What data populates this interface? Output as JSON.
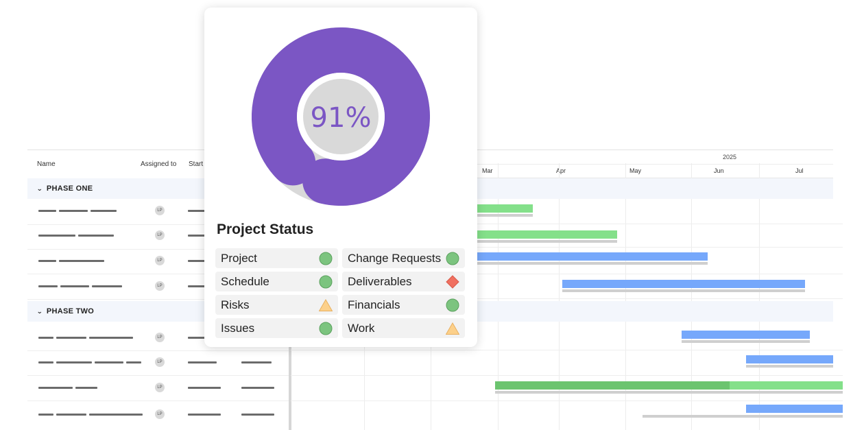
{
  "grid": {
    "columns": [
      {
        "label": "Name"
      },
      {
        "label": "Assigned to"
      },
      {
        "label": "Start"
      }
    ],
    "phases": [
      {
        "label": "PHASE ONE"
      },
      {
        "label": "PHASE TWO"
      }
    ],
    "avatar_initials": "LP"
  },
  "gantt": {
    "year": "2025",
    "months": [
      "Mar",
      "Apr",
      "May",
      "Jun",
      "Jul"
    ]
  },
  "card": {
    "percent": "91%",
    "progress": 0.91,
    "title": "Project Status",
    "items": [
      {
        "label": "Project",
        "status": "green-circle"
      },
      {
        "label": "Change Requests",
        "status": "green-circle"
      },
      {
        "label": "Schedule",
        "status": "green-circle"
      },
      {
        "label": "Deliverables",
        "status": "red-diamond"
      },
      {
        "label": "Risks",
        "status": "yellow-triangle"
      },
      {
        "label": "Financials",
        "status": "green-circle"
      },
      {
        "label": "Issues",
        "status": "green-circle"
      },
      {
        "label": "Work",
        "status": "yellow-triangle"
      }
    ]
  },
  "colors": {
    "accent": "#7b56c4",
    "green": "#84e08a",
    "blue": "#76a8fb",
    "status_green": "#7cc47f",
    "status_red": "#f07060",
    "status_yellow": "#fcd08a"
  }
}
